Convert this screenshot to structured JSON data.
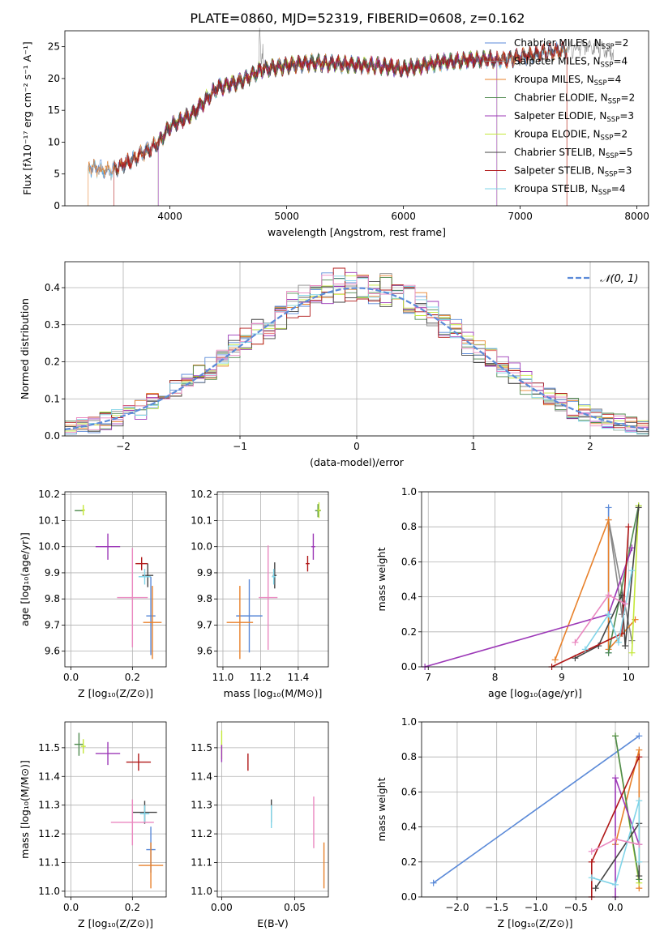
{
  "figure_title": "PLATE=0860, MJD=52319, FIBERID=0608, z=0.162",
  "colors": {
    "Chabrier MILES": "#5b8ad8",
    "Salpeter MILES": "#888888",
    "Kroupa MILES": "#e8812b",
    "Chabrier ELODIE": "#4f8a4f",
    "Salpeter ELODIE": "#9c38b7",
    "Kroupa ELODIE": "#c4e83a",
    "Chabrier STELIB": "#444444",
    "Salpeter STELIB": "#b01818",
    "Kroupa STELIB": "#80d4e8",
    "Pink": "#ea88c0",
    "Blue": "#5b8ad8",
    "Gaussian": "#5b8ad8"
  },
  "chart_data": [
    {
      "panel": "spectrum",
      "type": "line",
      "xlabel": "wavelength [Angstrom, rest frame]",
      "ylabel": "Flux [fλ10⁻¹⁷ erg cm⁻² s⁻¹ A⁻¹]",
      "xlim": [
        3100,
        8100
      ],
      "ylim": [
        0,
        27.5
      ],
      "xticks": [
        "4000",
        "5000",
        "6000",
        "7000",
        "8000"
      ],
      "yticks": [
        "0",
        "5",
        "10",
        "15",
        "20",
        "25"
      ],
      "grid": false,
      "legend_position": "top-right",
      "continuum": [
        [
          3300,
          6.0
        ],
        [
          3500,
          5.5
        ],
        [
          3700,
          7.5
        ],
        [
          3900,
          9.8
        ],
        [
          4000,
          12.5
        ],
        [
          4200,
          14.5
        ],
        [
          4400,
          18.5
        ],
        [
          4600,
          19.5
        ],
        [
          4800,
          21.5
        ],
        [
          5000,
          22.0
        ],
        [
          5200,
          22.5
        ],
        [
          5500,
          22.2
        ],
        [
          5800,
          22.0
        ],
        [
          6000,
          21.5
        ],
        [
          6300,
          22.5
        ],
        [
          6600,
          23.0
        ],
        [
          6900,
          23.0
        ],
        [
          7200,
          24.0
        ],
        [
          7400,
          24.5
        ],
        [
          7600,
          25.0
        ],
        [
          7800,
          24.0
        ]
      ],
      "series": [
        {
          "name": "Chabrier MILES, N_SSP=2",
          "start": 3300,
          "end": 7400
        },
        {
          "name": "Salpeter MILES, N_SSP=4",
          "start": 3300,
          "end": 7800
        },
        {
          "name": "Kroupa MILES, N_SSP=4",
          "start": 3300,
          "end": 7400
        },
        {
          "name": "Chabrier ELODIE, N_SSP=2",
          "start": 3900,
          "end": 6800
        },
        {
          "name": "Salpeter ELODIE, N_SSP=3",
          "start": 3900,
          "end": 6800
        },
        {
          "name": "Kroupa ELODIE, N_SSP=2",
          "start": 3900,
          "end": 6800
        },
        {
          "name": "Chabrier STELIB, N_SSP=5",
          "start": 3520,
          "end": 7400
        },
        {
          "name": "Salpeter STELIB, N_SSP=3",
          "start": 3520,
          "end": 7400
        },
        {
          "name": "Kroupa STELIB, N_SSP=4",
          "start": 3300,
          "end": 7400
        }
      ],
      "legend": [
        {
          "prefix": "Chabrier MILES, N",
          "sub": "SSP",
          "suffix": "=2"
        },
        {
          "prefix": "Salpeter MILES, N",
          "sub": "SSP",
          "suffix": "=4"
        },
        {
          "prefix": "Kroupa MILES, N",
          "sub": "SSP",
          "suffix": "=4"
        },
        {
          "prefix": "Chabrier ELODIE, N",
          "sub": "SSP",
          "suffix": "=2"
        },
        {
          "prefix": "Salpeter ELODIE, N",
          "sub": "SSP",
          "suffix": "=3"
        },
        {
          "prefix": "Kroupa ELODIE, N",
          "sub": "SSP",
          "suffix": "=2"
        },
        {
          "prefix": "Chabrier STELIB, N",
          "sub": "SSP",
          "suffix": "=5"
        },
        {
          "prefix": "Salpeter STELIB, N",
          "sub": "SSP",
          "suffix": "=3"
        },
        {
          "prefix": "Kroupa STELIB, N",
          "sub": "SSP",
          "suffix": "=4"
        }
      ]
    },
    {
      "panel": "residuals",
      "type": "histogram",
      "xlabel": "(data-model)/error",
      "ylabel": "Normed distribution",
      "xlim": [
        -2.5,
        2.5
      ],
      "ylim": [
        0,
        0.47
      ],
      "xticks": [
        "−2",
        "−1",
        "0",
        "1",
        "2"
      ],
      "yticks": [
        "0.0",
        "0.1",
        "0.2",
        "0.3",
        "0.4"
      ],
      "grid": true,
      "bin_width": 0.1,
      "legend": "𝒩(0, 1)",
      "legend_position": "top-right",
      "series_count": 10
    },
    {
      "panel": "age_vs_Z",
      "type": "errorbar",
      "xlabel": "Z [log₁₀(Z/Z⊙)]",
      "ylabel": "age  [log₁₀(age/yr)]",
      "xlim": [
        -0.02,
        0.31
      ],
      "ylim": [
        9.54,
        10.21
      ],
      "xticks": [
        "0.0",
        "0.2"
      ],
      "yticks": [
        "9.6",
        "9.7",
        "9.8",
        "9.9",
        "10.0",
        "10.1",
        "10.2"
      ],
      "grid": true,
      "points": [
        {
          "x": 0.026,
          "y": 10.138,
          "xe": 0.014,
          "ye": 0.0,
          "c": "Chabrier ELODIE"
        },
        {
          "x": 0.04,
          "y": 10.14,
          "xe": 0.006,
          "ye": 0.02,
          "c": "Kroupa ELODIE"
        },
        {
          "x": 0.12,
          "y": 10.0,
          "xe": 0.04,
          "ye": 0.05,
          "c": "Salpeter ELODIE"
        },
        {
          "x": 0.23,
          "y": 9.935,
          "xe": 0.02,
          "ye": 0.025,
          "c": "Salpeter STELIB"
        },
        {
          "x": 0.25,
          "y": 9.89,
          "xe": 0.018,
          "ye": 0.045,
          "c": "Chabrier STELIB"
        },
        {
          "x": 0.24,
          "y": 9.885,
          "xe": 0.02,
          "ye": 0.03,
          "c": "Kroupa STELIB"
        },
        {
          "x": 0.2,
          "y": 9.805,
          "xe": 0.05,
          "ye": 0.19,
          "c": "Pink"
        },
        {
          "x": 0.26,
          "y": 9.735,
          "xe": 0.015,
          "ye": 0.15,
          "c": "Chabrier MILES"
        },
        {
          "x": 0.265,
          "y": 9.71,
          "xe": 0.03,
          "ye": 0.14,
          "c": "Kroupa MILES"
        }
      ]
    },
    {
      "panel": "age_vs_mass",
      "type": "errorbar",
      "xlabel": "mass [log₁₀(M/M⊙)]",
      "xlim": [
        10.97,
        11.56
      ],
      "ylim": [
        9.54,
        10.21
      ],
      "xticks": [
        "11.0",
        "11.2",
        "11.4"
      ],
      "yticks": [
        "9.6",
        "9.7",
        "9.8",
        "9.9",
        "10.0",
        "10.1",
        "10.2"
      ],
      "grid": true,
      "points": [
        {
          "x": 11.505,
          "y": 10.138,
          "xe": 0.015,
          "ye": 0.025,
          "c": "Chabrier ELODIE"
        },
        {
          "x": 11.51,
          "y": 10.14,
          "xe": 0.01,
          "ye": 0.03,
          "c": "Kroupa ELODIE"
        },
        {
          "x": 11.48,
          "y": 10.0,
          "xe": 0.01,
          "ye": 0.05,
          "c": "Salpeter ELODIE"
        },
        {
          "x": 11.45,
          "y": 9.935,
          "xe": 0.01,
          "ye": 0.03,
          "c": "Salpeter STELIB"
        },
        {
          "x": 11.275,
          "y": 9.89,
          "xe": 0.01,
          "ye": 0.05,
          "c": "Chabrier STELIB"
        },
        {
          "x": 11.27,
          "y": 9.885,
          "xe": 0.01,
          "ye": 0.03,
          "c": "Kroupa STELIB"
        },
        {
          "x": 11.24,
          "y": 9.805,
          "xe": 0.05,
          "ye": 0.2,
          "c": "Pink"
        },
        {
          "x": 11.14,
          "y": 9.735,
          "xe": 0.07,
          "ye": 0.14,
          "c": "Chabrier MILES"
        },
        {
          "x": 11.09,
          "y": 9.71,
          "xe": 0.07,
          "ye": 0.14,
          "c": "Kroupa MILES"
        }
      ]
    },
    {
      "panel": "mass_weight_vs_age",
      "type": "line",
      "xlabel": "age  [log₁₀(age/yr)]",
      "ylabel": "mass weight",
      "xlim": [
        6.9,
        10.3
      ],
      "ylim": [
        0,
        1
      ],
      "xticks": [
        "7",
        "8",
        "9",
        "10"
      ],
      "yticks": [
        "0.0",
        "0.2",
        "0.4",
        "0.6",
        "0.8",
        "1.0"
      ],
      "grid": true,
      "series": [
        {
          "c": "Chabrier MILES",
          "x": [
            9.7,
            9.7
          ],
          "y": [
            0.08,
            0.91
          ]
        },
        {
          "c": "Salpeter MILES",
          "x": [
            9.9,
            9.7,
            10.05
          ],
          "y": [
            0.3,
            0.84,
            0.15
          ]
        },
        {
          "c": "Kroupa MILES",
          "x": [
            8.9,
            9.7,
            9.7,
            10.1
          ],
          "y": [
            0.04,
            0.84,
            0.1,
            0.27
          ]
        },
        {
          "c": "Chabrier ELODIE",
          "x": [
            9.7,
            10.15
          ],
          "y": [
            0.08,
            0.92
          ]
        },
        {
          "c": "Salpeter ELODIE",
          "x": [
            6.95,
            9.7,
            10.05
          ],
          "y": [
            0.0,
            0.3,
            0.68
          ]
        },
        {
          "c": "Kroupa ELODIE",
          "x": [
            10.05,
            10.15
          ],
          "y": [
            0.08,
            0.92
          ]
        },
        {
          "c": "Chabrier STELIB",
          "x": [
            9.2,
            9.55,
            9.9,
            9.95,
            10.15
          ],
          "y": [
            0.05,
            0.12,
            0.41,
            0.12,
            0.91
          ]
        },
        {
          "c": "Salpeter STELIB",
          "x": [
            8.85,
            9.9,
            10.0
          ],
          "y": [
            0.0,
            0.19,
            0.8
          ]
        },
        {
          "c": "Kroupa STELIB",
          "x": [
            9.35,
            9.7,
            9.85,
            10.05
          ],
          "y": [
            0.1,
            0.3,
            0.14,
            0.55
          ]
        },
        {
          "c": "Pink",
          "x": [
            9.2,
            9.7,
            9.95
          ],
          "y": [
            0.14,
            0.41,
            0.36
          ]
        }
      ]
    },
    {
      "panel": "mass_vs_Z",
      "type": "errorbar",
      "xlabel": "Z [log₁₀(Z/Z⊙)]",
      "ylabel": "mass [log₁₀(M/M⊙)]",
      "xlim": [
        -0.02,
        0.31
      ],
      "ylim": [
        10.98,
        11.59
      ],
      "xticks": [
        "0.0",
        "0.2"
      ],
      "yticks": [
        "11.0",
        "11.1",
        "11.2",
        "11.3",
        "11.4",
        "11.5"
      ],
      "grid": true,
      "points": [
        {
          "x": 0.026,
          "y": 11.512,
          "xe": 0.015,
          "ye": 0.04,
          "c": "Chabrier ELODIE"
        },
        {
          "x": 0.04,
          "y": 11.505,
          "xe": 0.008,
          "ye": 0.025,
          "c": "Kroupa ELODIE"
        },
        {
          "x": 0.12,
          "y": 11.48,
          "xe": 0.04,
          "ye": 0.04,
          "c": "Salpeter ELODIE"
        },
        {
          "x": 0.22,
          "y": 11.45,
          "xe": 0.04,
          "ye": 0.03,
          "c": "Salpeter STELIB"
        },
        {
          "x": 0.24,
          "y": 11.275,
          "xe": 0.04,
          "ye": 0.04,
          "c": "Chabrier STELIB"
        },
        {
          "x": 0.24,
          "y": 11.27,
          "xe": 0.015,
          "ye": 0.03,
          "c": "Kroupa STELIB"
        },
        {
          "x": 0.2,
          "y": 11.24,
          "xe": 0.07,
          "ye": 0.08,
          "c": "Pink"
        },
        {
          "x": 0.26,
          "y": 11.145,
          "xe": 0.015,
          "ye": 0.08,
          "c": "Chabrier MILES"
        },
        {
          "x": 0.26,
          "y": 11.09,
          "xe": 0.04,
          "ye": 0.08,
          "c": "Kroupa MILES"
        }
      ]
    },
    {
      "panel": "mass_vs_EBV",
      "type": "errorbar",
      "xlabel": "E(B-V)",
      "xlim": [
        -0.003,
        0.073
      ],
      "ylim": [
        10.98,
        11.59
      ],
      "xticks": [
        "0.00",
        "0.05"
      ],
      "yticks": [
        "11.0",
        "11.1",
        "11.2",
        "11.3",
        "11.4",
        "11.5"
      ],
      "grid": true,
      "points": [
        {
          "x": 0.0,
          "y": 11.51,
          "xe": 0.0,
          "ye": 0.05,
          "c": "Kroupa ELODIE"
        },
        {
          "x": 0.0,
          "y": 11.48,
          "xe": 0.0,
          "ye": 0.03,
          "c": "Salpeter ELODIE"
        },
        {
          "x": 0.018,
          "y": 11.45,
          "xe": 0.0,
          "ye": 0.03,
          "c": "Salpeter STELIB"
        },
        {
          "x": 0.034,
          "y": 11.28,
          "xe": 0.0,
          "ye": 0.04,
          "c": "Chabrier STELIB"
        },
        {
          "x": 0.034,
          "y": 11.26,
          "xe": 0.0,
          "ye": 0.04,
          "c": "Kroupa STELIB"
        },
        {
          "x": 0.063,
          "y": 11.24,
          "xe": 0.0,
          "ye": 0.09,
          "c": "Pink"
        },
        {
          "x": 0.07,
          "y": 11.09,
          "xe": 0.0,
          "ye": 0.08,
          "c": "Kroupa MILES"
        }
      ]
    },
    {
      "panel": "mass_weight_vs_Z",
      "type": "line",
      "xlabel": "Z [log₁₀(Z/Z⊙)]",
      "ylabel": "mass weight",
      "xlim": [
        -2.45,
        0.42
      ],
      "ylim": [
        0,
        1
      ],
      "xticks": [
        "−2.0",
        "−1.5",
        "−1.0",
        "−0.5",
        "0.0"
      ],
      "yticks": [
        "0.0",
        "0.2",
        "0.4",
        "0.6",
        "0.8",
        "1.0"
      ],
      "grid": true,
      "series": [
        {
          "c": "Chabrier MILES",
          "x": [
            -2.3,
            0.3
          ],
          "y": [
            0.08,
            0.92
          ]
        },
        {
          "c": "Kroupa MILES",
          "x": [
            0.0,
            0.3,
            0.3
          ],
          "y": [
            0.3,
            0.84,
            0.05
          ]
        },
        {
          "c": "Kroupa ELODIE",
          "x": [
            0.0,
            0.3
          ],
          "y": [
            0.92,
            0.08
          ]
        },
        {
          "c": "Chabrier ELODIE",
          "x": [
            0.0,
            0.3
          ],
          "y": [
            0.92,
            0.1
          ]
        },
        {
          "c": "Salpeter ELODIE",
          "x": [
            0.0,
            0.0,
            0.3
          ],
          "y": [
            0.0,
            0.68,
            0.3
          ]
        },
        {
          "c": "Salpeter STELIB",
          "x": [
            -0.3,
            -0.3,
            0.3
          ],
          "y": [
            0.0,
            0.2,
            0.8
          ]
        },
        {
          "c": "Chabrier STELIB",
          "x": [
            -0.25,
            0.3,
            0.3
          ],
          "y": [
            0.05,
            0.42,
            0.12
          ]
        },
        {
          "c": "Kroupa STELIB",
          "x": [
            -0.3,
            0.0,
            0.3,
            0.3
          ],
          "y": [
            0.11,
            0.07,
            0.55,
            0.2
          ]
        },
        {
          "c": "Pink",
          "x": [
            -0.3,
            0.0,
            0.3
          ],
          "y": [
            0.26,
            0.33,
            0.3
          ]
        }
      ]
    }
  ]
}
